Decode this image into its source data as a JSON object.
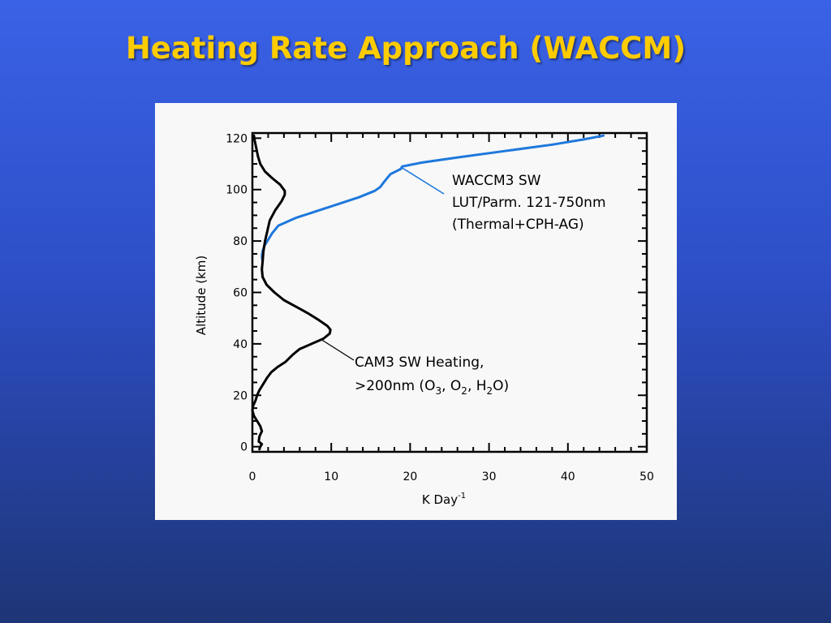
{
  "slide": {
    "title": "Heating Rate Approach (WACCM)"
  },
  "chart_data": {
    "type": "line",
    "title": "",
    "xlabel": "K Day",
    "xlabel_superscript": "-1",
    "ylabel": "Altitude (km)",
    "xlim": [
      0,
      50
    ],
    "ylim": [
      -2,
      122
    ],
    "xticks": [
      0,
      10,
      20,
      30,
      40,
      50
    ],
    "yticks": [
      0,
      20,
      40,
      60,
      80,
      100,
      120
    ],
    "grid": false,
    "colors": {
      "waccm": "#1e78dc",
      "cam": "#000000"
    },
    "series": [
      {
        "name": "WACCM3 SW",
        "points": [
          [
            1.3,
            72
          ],
          [
            1.2,
            74
          ],
          [
            1.3,
            76
          ],
          [
            1.5,
            78
          ],
          [
            1.9,
            80
          ],
          [
            2.5,
            83
          ],
          [
            3.3,
            86
          ],
          [
            5.5,
            89
          ],
          [
            8,
            91.5
          ],
          [
            11,
            94.5
          ],
          [
            13.5,
            97
          ],
          [
            15.5,
            99.5
          ],
          [
            16.2,
            101
          ],
          [
            16.7,
            103
          ],
          [
            17.5,
            106
          ],
          [
            18.8,
            108
          ],
          [
            19,
            109
          ],
          [
            21.5,
            110.5
          ],
          [
            26,
            112.5
          ],
          [
            32,
            115
          ],
          [
            38,
            117.5
          ],
          [
            42,
            119.5
          ],
          [
            44.5,
            121
          ]
        ]
      },
      {
        "name": "CAM3 SW Heating,",
        "points": [
          [
            0.9,
            -1
          ],
          [
            1,
            0
          ],
          [
            1.2,
            1
          ],
          [
            0.8,
            2
          ],
          [
            0.9,
            4
          ],
          [
            1.2,
            6
          ],
          [
            1,
            8
          ],
          [
            0.6,
            10
          ],
          [
            0.2,
            12
          ],
          [
            0,
            14
          ],
          [
            0.1,
            16
          ],
          [
            0.4,
            18
          ],
          [
            0.6,
            20
          ],
          [
            0.9,
            22
          ],
          [
            1.5,
            25
          ],
          [
            1.9,
            27
          ],
          [
            2.4,
            29
          ],
          [
            3.2,
            31
          ],
          [
            4.2,
            33
          ],
          [
            5.2,
            36
          ],
          [
            6,
            38
          ],
          [
            7.5,
            40
          ],
          [
            9,
            42
          ],
          [
            9.8,
            44
          ],
          [
            9.9,
            45.5
          ],
          [
            9.5,
            47
          ],
          [
            8.3,
            49.5
          ],
          [
            7,
            52
          ],
          [
            5.5,
            54.5
          ],
          [
            4,
            57
          ],
          [
            2.8,
            60
          ],
          [
            1.8,
            63
          ],
          [
            1.3,
            66
          ],
          [
            1.2,
            69
          ],
          [
            1.3,
            72
          ],
          [
            1.4,
            76
          ],
          [
            1.6,
            80
          ],
          [
            1.9,
            84
          ],
          [
            2.2,
            88
          ],
          [
            2.9,
            92
          ],
          [
            3.7,
            95.5
          ],
          [
            4.1,
            98
          ],
          [
            4.1,
            99.5
          ],
          [
            3.5,
            102
          ],
          [
            2.5,
            104.5
          ],
          [
            1.6,
            107
          ],
          [
            1,
            110
          ],
          [
            0.7,
            113
          ],
          [
            0.5,
            116
          ],
          [
            0.3,
            119
          ],
          [
            0.2,
            121
          ]
        ]
      }
    ],
    "annotations": [
      {
        "target": "WACCM3 SW",
        "lines": [
          "WACCM3 SW",
          "LUT/Parm. 121-750nm",
          "(Thermal+CPH-AG)"
        ],
        "color": "#1e78dc"
      },
      {
        "target": "CAM3 SW Heating,",
        "lines": [
          "CAM3 SW Heating,",
          ">200nm (O3, O2, H2O)"
        ],
        "color": "#000000"
      }
    ]
  }
}
